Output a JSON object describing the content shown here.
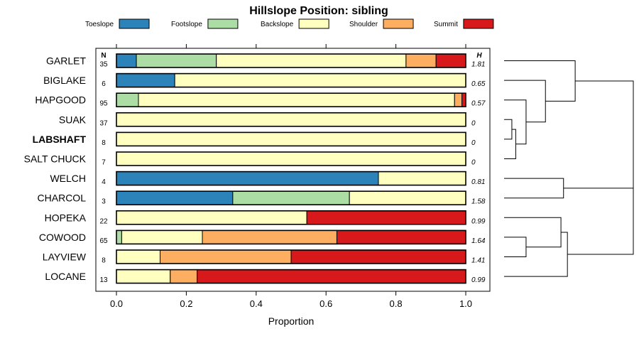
{
  "chart_data": {
    "type": "bar",
    "orientation": "horizontal",
    "stacked": true,
    "title": "Hillslope Position: sibling",
    "xlabel": "Proportion",
    "ylabel": "",
    "xlim": [
      0,
      1
    ],
    "xticks": [
      "0.0",
      "0.2",
      "0.4",
      "0.6",
      "0.8",
      "1.0"
    ],
    "n_header": "N",
    "h_header": "H",
    "categories": [
      "Toeslope",
      "Footslope",
      "Backslope",
      "Shoulder",
      "Summit"
    ],
    "colors": [
      "#2b83ba",
      "#abdda4",
      "#ffffbf",
      "#fdae61",
      "#d7191c"
    ],
    "rows": [
      {
        "name": "GARLET",
        "n": "35",
        "h": "1.81",
        "bold": false,
        "values": [
          0.057,
          0.229,
          0.543,
          0.086,
          0.085
        ]
      },
      {
        "name": "BIGLAKE",
        "n": "6",
        "h": "0.65",
        "bold": false,
        "values": [
          0.167,
          0,
          0.833,
          0,
          0
        ]
      },
      {
        "name": "HAPGOOD",
        "n": "95",
        "h": "0.57",
        "bold": false,
        "values": [
          0,
          0.063,
          0.905,
          0.021,
          0.011
        ]
      },
      {
        "name": "SUAK",
        "n": "37",
        "h": "0",
        "bold": false,
        "values": [
          0,
          0,
          1,
          0,
          0
        ]
      },
      {
        "name": "LABSHAFT",
        "n": "8",
        "h": "0",
        "bold": true,
        "values": [
          0,
          0,
          1,
          0,
          0
        ]
      },
      {
        "name": "SALT CHUCK",
        "n": "7",
        "h": "0",
        "bold": false,
        "values": [
          0,
          0,
          1,
          0,
          0
        ]
      },
      {
        "name": "WELCH",
        "n": "4",
        "h": "0.81",
        "bold": false,
        "values": [
          0.75,
          0,
          0.25,
          0,
          0
        ]
      },
      {
        "name": "CHARCOL",
        "n": "3",
        "h": "1.58",
        "bold": false,
        "values": [
          0.333,
          0.334,
          0.333,
          0,
          0
        ]
      },
      {
        "name": "HOPEKA",
        "n": "22",
        "h": "0.99",
        "bold": false,
        "values": [
          0,
          0,
          0.545,
          0,
          0.455
        ]
      },
      {
        "name": "COWOOD",
        "n": "65",
        "h": "1.64",
        "bold": false,
        "values": [
          0,
          0.015,
          0.231,
          0.385,
          0.369
        ]
      },
      {
        "name": "LAYVIEW",
        "n": "8",
        "h": "1.41",
        "bold": false,
        "values": [
          0,
          0,
          0.125,
          0.375,
          0.5
        ]
      },
      {
        "name": "LOCANE",
        "n": "13",
        "h": "0.99",
        "bold": false,
        "values": [
          0,
          0,
          0.154,
          0.077,
          0.769
        ]
      }
    ],
    "dendrogram": {
      "type": "dendrogram",
      "merges": [
        {
          "a": "r3",
          "b": "r4",
          "height": 0.06
        },
        {
          "a": "c0",
          "b": "r5",
          "height": 0.09
        },
        {
          "a": "c1",
          "b": "r2",
          "height": 0.17
        },
        {
          "a": "c2",
          "b": "r1",
          "height": 0.32
        },
        {
          "a": "r0",
          "b": "c3",
          "height": 0.55
        },
        {
          "a": "r6",
          "b": "r7",
          "height": 0.46
        },
        {
          "a": "r9",
          "b": "r10",
          "height": 0.17
        },
        {
          "a": "r8",
          "b": "c6",
          "height": 0.44
        },
        {
          "a": "c7",
          "b": "r11",
          "height": 0.49
        },
        {
          "a": "c5",
          "b": "c8",
          "height": 1.0
        },
        {
          "a": "c4",
          "b": "c9",
          "height": 1.0
        }
      ]
    }
  }
}
